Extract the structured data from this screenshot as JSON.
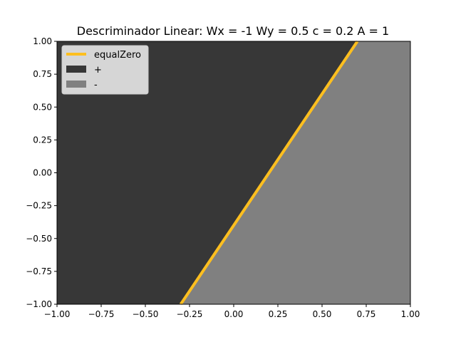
{
  "chart_data": {
    "type": "area",
    "title": "Descriminador Linear: Wx = -1 Wy = 0.5 c = 0.2 A = 1",
    "xlabel": "",
    "ylabel": "",
    "xlim": [
      -1.0,
      1.0
    ],
    "ylim": [
      -1.0,
      1.0
    ],
    "xticks": [
      "−1.00",
      "−0.75",
      "−0.50",
      "−0.25",
      "0.00",
      "0.25",
      "0.50",
      "0.75",
      "1.00"
    ],
    "xtick_values": [
      -1.0,
      -0.75,
      -0.5,
      -0.25,
      0.0,
      0.25,
      0.5,
      0.75,
      1.0
    ],
    "yticks": [
      "−1.00",
      "−0.75",
      "−0.50",
      "−0.25",
      "0.00",
      "0.25",
      "0.50",
      "0.75",
      "1.00"
    ],
    "ytick_values": [
      -1.0,
      -0.75,
      -0.5,
      -0.25,
      0.0,
      0.25,
      0.5,
      0.75,
      1.0
    ],
    "grid": false,
    "legend_position": "top-left",
    "series": [
      {
        "name": "equalZero",
        "kind": "line",
        "color": "#FFBF1F",
        "x": [
          -0.3,
          0.7
        ],
        "y": [
          -1.0,
          1.0
        ]
      },
      {
        "name": "+",
        "kind": "region",
        "color": "#373737",
        "polygon": [
          [
            -1.0,
            -1.0
          ],
          [
            -0.3,
            -1.0
          ],
          [
            0.7,
            1.0
          ],
          [
            -1.0,
            1.0
          ]
        ]
      },
      {
        "name": "-",
        "kind": "region",
        "color": "#808080",
        "polygon": [
          [
            -0.3,
            -1.0
          ],
          [
            1.0,
            -1.0
          ],
          [
            1.0,
            1.0
          ],
          [
            0.7,
            1.0
          ]
        ]
      }
    ]
  }
}
